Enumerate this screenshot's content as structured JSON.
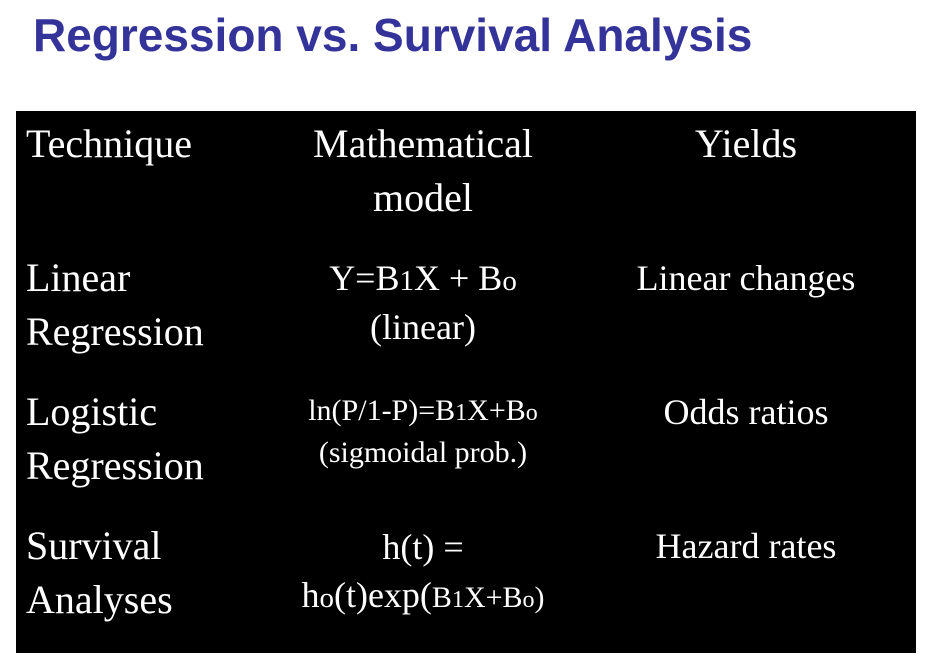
{
  "title": "Regression vs. Survival Analysis",
  "table": {
    "header": {
      "technique": "Technique",
      "model_line1": "Mathematical",
      "model_line2": "model",
      "yields": "Yields"
    },
    "rows": [
      {
        "technique_line1": "Linear",
        "technique_line2": "Regression",
        "model_line1_a": "Y=B",
        "model_line1_sub1": "1",
        "model_line1_b": "X + B",
        "model_line1_sub2": "o",
        "model_line2": "(linear)",
        "yields": "Linear changes"
      },
      {
        "technique_line1": "Logistic",
        "technique_line2": "Regression",
        "model_line1_a": "ln(P/1-P)=B",
        "model_line1_sub1": "1",
        "model_line1_b": "X+B",
        "model_line1_sub2": "o",
        "model_line2": "(sigmoidal prob.)",
        "yields": "Odds ratios"
      },
      {
        "technique_line1": "Survival",
        "technique_line2": "Analyses",
        "model_line1": "h(t) =",
        "model_line2_a": "h",
        "model_line2_sub1": "o",
        "model_line2_b": "(t)exp(",
        "model_line2_c": "B",
        "model_line2_sub2": "1",
        "model_line2_d": "X+B",
        "model_line2_sub3": "o",
        "model_line2_e": ")",
        "yields": "Hazard rates"
      }
    ]
  }
}
